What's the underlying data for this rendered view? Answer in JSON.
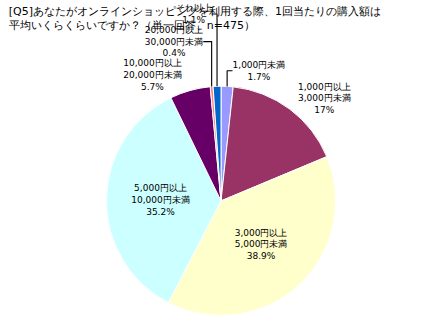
{
  "chart_data": {
    "type": "pie",
    "title": "[Q5]あなたがオンラインショッピングを利用する際、1回当たりの購入額は\n平均いくらくらいですか？（単一回答、n=475）",
    "categories": [
      "1,000円未満",
      "1,000円以上\n3,000円未満",
      "3,000円以上\n5,000円未満",
      "5,000円以上\n10,000円未満",
      "10,000円以上\n20,000円未満",
      "20,000円以上\n30,000円未満",
      "それ以上"
    ],
    "values": [
      1.7,
      17,
      38.9,
      35.2,
      5.7,
      0.4,
      1.1
    ],
    "value_labels": [
      "1.7%",
      "17%",
      "38.9%",
      "35.2%",
      "5.7%",
      "0.4%",
      "1.1%"
    ],
    "colors": [
      "#9999ff",
      "#993366",
      "#ffffcc",
      "#ccffff",
      "#660066",
      "#ff8080",
      "#0066cc"
    ],
    "data_labels": true
  }
}
